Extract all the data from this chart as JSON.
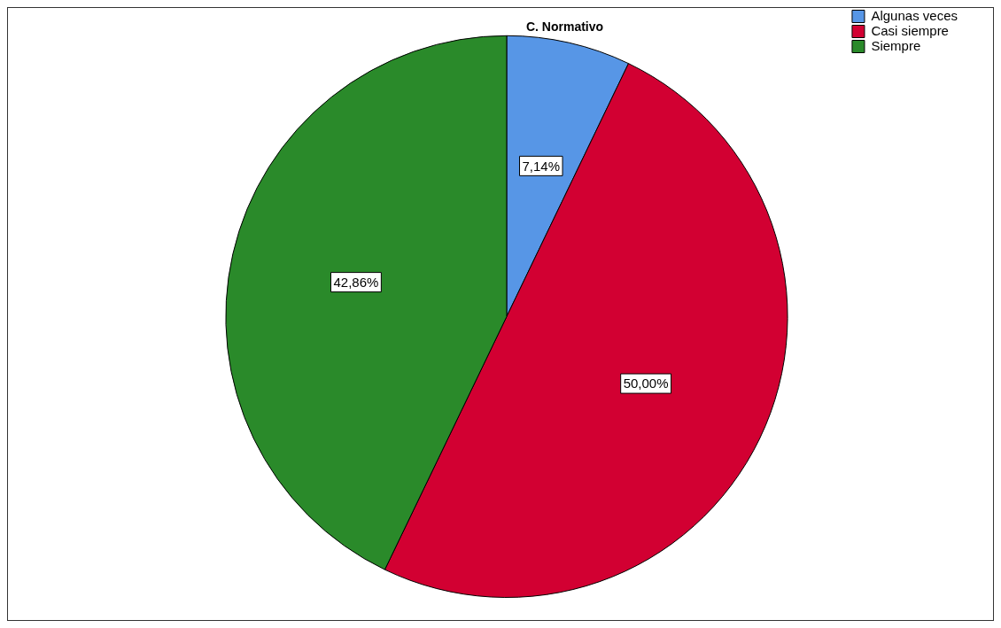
{
  "chart_data": {
    "type": "pie",
    "title": "C. Normativo",
    "categories": [
      "Algunas veces",
      "Casi siempre",
      "Siempre"
    ],
    "values": [
      7.14,
      50,
      42.86
    ],
    "colors": [
      "#5796e6",
      "#d20032",
      "#2a8a2a"
    ],
    "value_labels": [
      "7,14%",
      "50,00%",
      "42,86%"
    ],
    "legend": "top right"
  }
}
